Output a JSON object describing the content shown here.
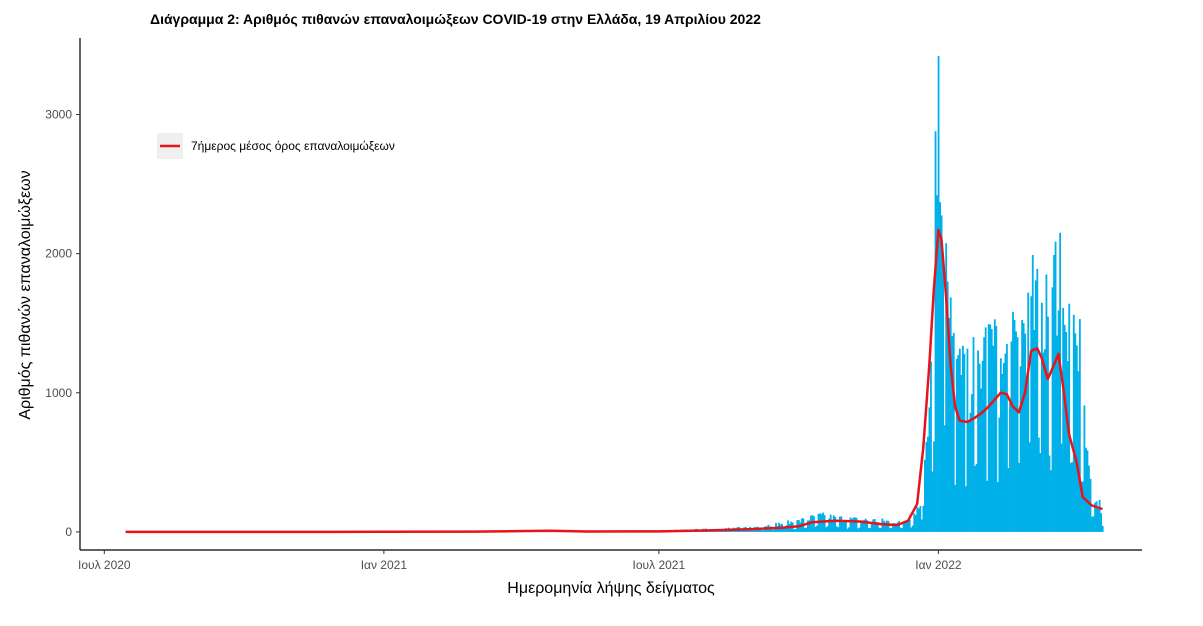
{
  "chart_data": {
    "type": "bar",
    "title": "Διάγραμμα 2: Αριθμός πιθανών επαναλοιμώξεων COVID-19 στην Ελλάδα, 19 Απριλίου 2022",
    "xlabel": "Ημερομηνία λήψης δείγματος",
    "ylabel": "Αριθμός πιθανών επαναλοιμώξεων",
    "x_ticks": [
      {
        "date": "2020-07-01",
        "label": "Ιουλ 2020"
      },
      {
        "date": "2021-01-01",
        "label": "Ιαν 2021"
      },
      {
        "date": "2021-07-01",
        "label": "Ιουλ 2021"
      },
      {
        "date": "2022-01-01",
        "label": "Ιαν 2022"
      }
    ],
    "y_ticks": [
      0,
      1000,
      2000,
      3000
    ],
    "xlim": [
      "2020-06-15",
      "2022-05-15"
    ],
    "ylim": [
      -130,
      3550
    ],
    "grid": false,
    "legend_position": "top-left",
    "colors": {
      "bars": "#00b0e8",
      "line": "#e8131b"
    },
    "series": [
      {
        "name": "",
        "kind": "bar",
        "color": "#00b0e8",
        "x_start": "2020-07-15",
        "x_end": "2022-04-19",
        "envelope": [
          [
            "2020-07-15",
            1
          ],
          [
            "2021-01-01",
            2
          ],
          [
            "2021-04-01",
            5
          ],
          [
            "2021-06-01",
            4
          ],
          [
            "2021-07-01",
            10
          ],
          [
            "2021-08-01",
            20
          ],
          [
            "2021-09-01",
            35
          ],
          [
            "2021-10-01",
            80
          ],
          [
            "2021-10-15",
            120
          ],
          [
            "2021-11-01",
            95
          ],
          [
            "2021-11-20",
            85
          ],
          [
            "2021-12-10",
            75
          ],
          [
            "2021-12-20",
            200
          ],
          [
            "2021-12-25",
            900
          ],
          [
            "2021-12-28",
            1550
          ],
          [
            "2021-12-31",
            2450
          ],
          [
            "2022-01-03",
            2300
          ],
          [
            "2022-01-06",
            1900
          ],
          [
            "2022-01-10",
            1350
          ],
          [
            "2022-01-15",
            1150
          ],
          [
            "2022-01-20",
            1100
          ],
          [
            "2022-01-25",
            1200
          ],
          [
            "2022-02-01",
            1300
          ],
          [
            "2022-02-05",
            1400
          ],
          [
            "2022-02-10",
            1150
          ],
          [
            "2022-02-18",
            1300
          ],
          [
            "2022-02-25",
            1500
          ],
          [
            "2022-03-05",
            1700
          ],
          [
            "2022-03-12",
            1600
          ],
          [
            "2022-03-20",
            1900
          ],
          [
            "2022-03-26",
            1700
          ],
          [
            "2022-04-01",
            1500
          ],
          [
            "2022-04-06",
            900
          ],
          [
            "2022-04-10",
            400
          ],
          [
            "2022-04-19",
            150
          ]
        ],
        "peaks": [
          [
            "2021-12-30",
            2880
          ],
          [
            "2021-12-31",
            2420
          ],
          [
            "2022-01-01",
            3420
          ],
          [
            "2022-01-02",
            2370
          ],
          [
            "2022-01-04",
            2000
          ],
          [
            "2022-01-07",
            1800
          ],
          [
            "2022-01-11",
            1430
          ],
          [
            "2022-01-18",
            1280
          ],
          [
            "2022-01-24",
            1400
          ],
          [
            "2022-02-01",
            1470
          ],
          [
            "2022-02-04",
            1490
          ],
          [
            "2022-02-08",
            1480
          ],
          [
            "2022-02-15",
            1350
          ],
          [
            "2022-02-22",
            1400
          ],
          [
            "2022-03-01",
            1720
          ],
          [
            "2022-03-07",
            1890
          ],
          [
            "2022-03-13",
            1850
          ],
          [
            "2022-03-22",
            2150
          ],
          [
            "2022-03-28",
            1640
          ],
          [
            "2022-04-04",
            1530
          ]
        ],
        "zero_days_offset": [
          0,
          6
        ]
      },
      {
        "name": "7ήμερος μέσος όρος επαναλοιμώξεων",
        "kind": "line",
        "color": "#e8131b",
        "points": [
          [
            "2020-07-15",
            0
          ],
          [
            "2020-12-01",
            0
          ],
          [
            "2021-03-01",
            2
          ],
          [
            "2021-04-20",
            8
          ],
          [
            "2021-05-15",
            3
          ],
          [
            "2021-07-01",
            4
          ],
          [
            "2021-08-01",
            10
          ],
          [
            "2021-09-01",
            20
          ],
          [
            "2021-09-20",
            30
          ],
          [
            "2021-10-01",
            40
          ],
          [
            "2021-10-10",
            70
          ],
          [
            "2021-10-25",
            80
          ],
          [
            "2021-11-10",
            75
          ],
          [
            "2021-11-25",
            55
          ],
          [
            "2021-12-05",
            50
          ],
          [
            "2021-12-12",
            80
          ],
          [
            "2021-12-18",
            200
          ],
          [
            "2021-12-22",
            600
          ],
          [
            "2021-12-26",
            1200
          ],
          [
            "2021-12-29",
            1750
          ],
          [
            "2022-01-01",
            2170
          ],
          [
            "2022-01-03",
            2100
          ],
          [
            "2022-01-06",
            1700
          ],
          [
            "2022-01-09",
            1200
          ],
          [
            "2022-01-12",
            900
          ],
          [
            "2022-01-15",
            800
          ],
          [
            "2022-01-20",
            790
          ],
          [
            "2022-01-25",
            820
          ],
          [
            "2022-01-30",
            860
          ],
          [
            "2022-02-03",
            900
          ],
          [
            "2022-02-07",
            950
          ],
          [
            "2022-02-11",
            1000
          ],
          [
            "2022-02-15",
            990
          ],
          [
            "2022-02-19",
            900
          ],
          [
            "2022-02-23",
            860
          ],
          [
            "2022-02-27",
            1000
          ],
          [
            "2022-03-03",
            1300
          ],
          [
            "2022-03-07",
            1320
          ],
          [
            "2022-03-10",
            1250
          ],
          [
            "2022-03-14",
            1100
          ],
          [
            "2022-03-18",
            1200
          ],
          [
            "2022-03-21",
            1280
          ],
          [
            "2022-03-24",
            1050
          ],
          [
            "2022-03-28",
            700
          ],
          [
            "2022-04-02",
            500
          ],
          [
            "2022-04-06",
            250
          ],
          [
            "2022-04-12",
            190
          ],
          [
            "2022-04-19",
            165
          ]
        ]
      }
    ]
  }
}
